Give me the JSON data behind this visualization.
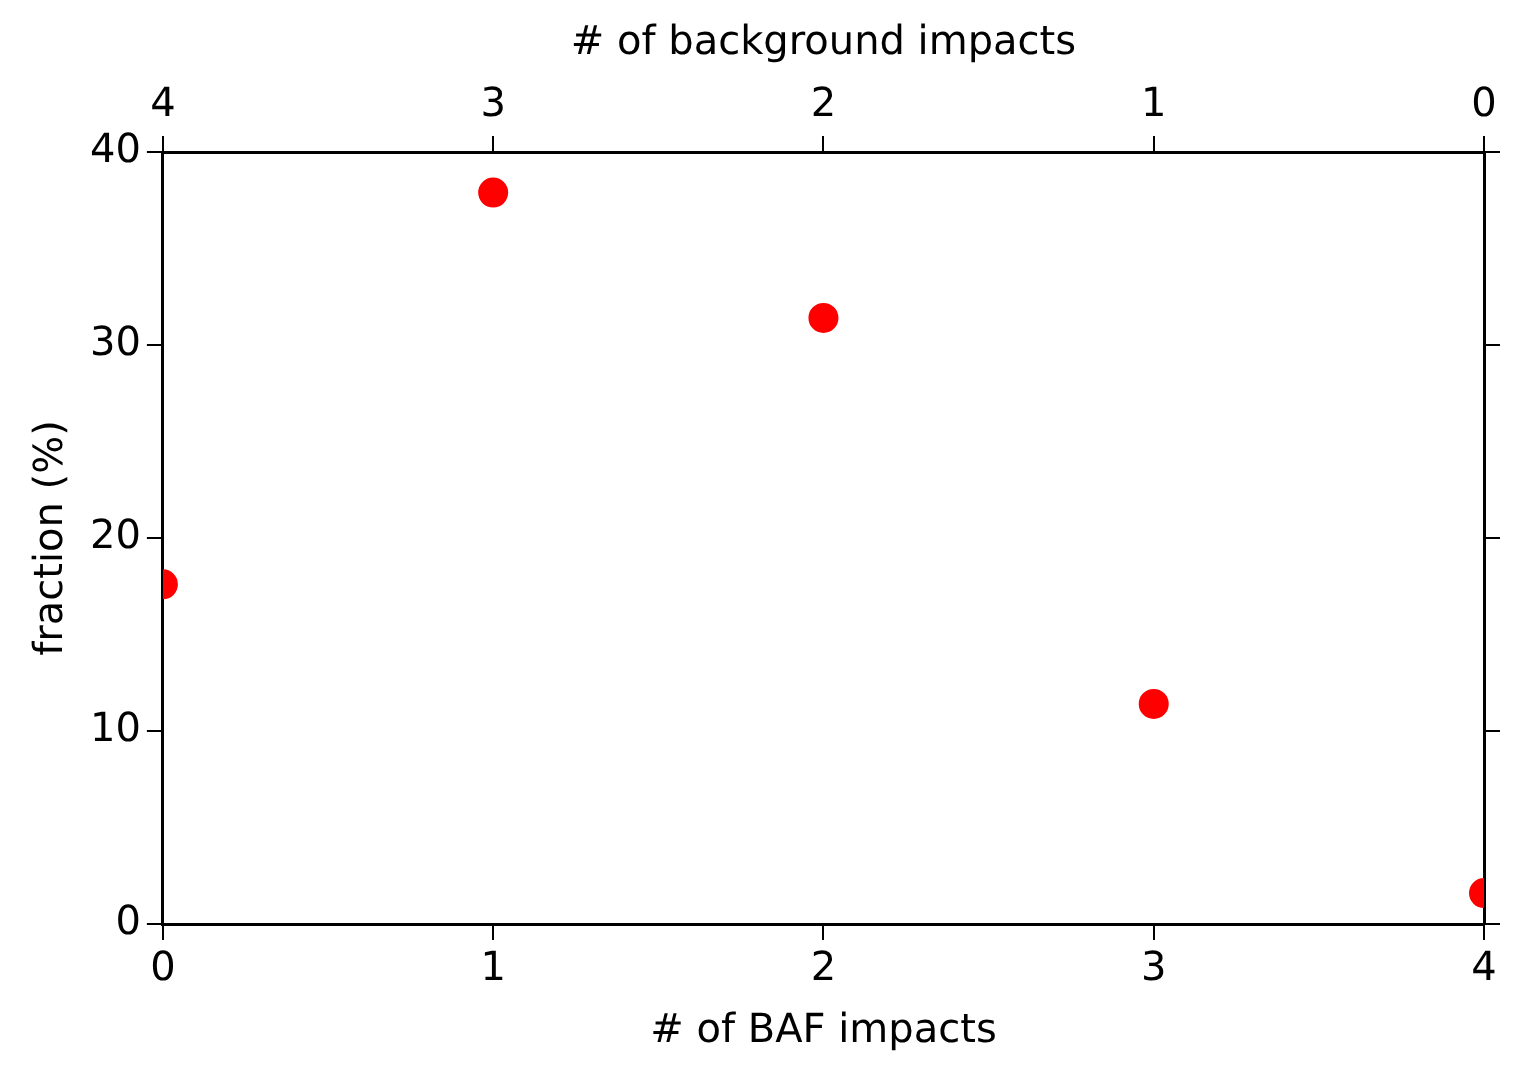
{
  "chart_data": {
    "type": "scatter",
    "xlabel": "# of BAF impacts",
    "x2label": "# of background impacts",
    "ylabel": "fraction (%)",
    "x": [
      0,
      1,
      2,
      3,
      4
    ],
    "series": [
      {
        "color": "#ff0000",
        "values": [
          17.6,
          37.9,
          31.4,
          11.4,
          1.6
        ]
      }
    ],
    "xlim": [
      0,
      4
    ],
    "xticks": [
      0,
      1,
      2,
      3,
      4
    ],
    "x2lim": [
      4,
      0
    ],
    "x2ticks": [
      4,
      3,
      2,
      1,
      0
    ],
    "ylim": [
      0,
      40
    ],
    "yticks": [
      0,
      10,
      20,
      30,
      40
    ],
    "grid": false,
    "legend": false,
    "marker": "circle"
  }
}
